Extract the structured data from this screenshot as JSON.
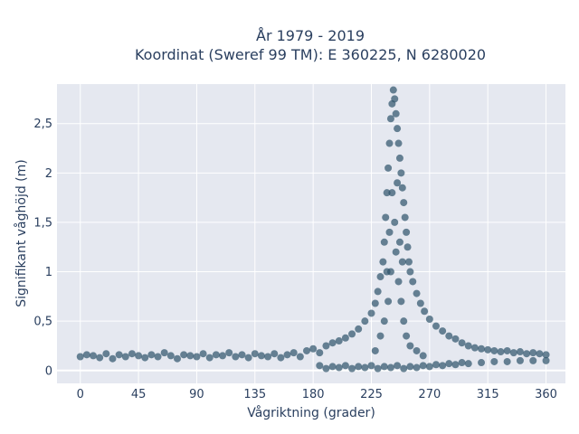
{
  "chart_data": {
    "type": "scatter",
    "title_lines": [
      "År 1979 - 2019",
      "Koordinat (Sweref 99 TM): E 360225, N 6280020"
    ],
    "xlabel": "Vågriktning (grader)",
    "ylabel": "Signifikant våghöjd (m)",
    "xlim": [
      -18,
      375
    ],
    "ylim": [
      -0.13,
      2.9
    ],
    "x_ticks": [
      0,
      45,
      90,
      135,
      180,
      225,
      270,
      315,
      360
    ],
    "x_tick_labels": [
      "0",
      "45",
      "90",
      "135",
      "180",
      "225",
      "270",
      "315",
      "360"
    ],
    "y_ticks": [
      0,
      0.5,
      1,
      1.5,
      2,
      2.5
    ],
    "y_tick_labels": [
      "0",
      "0,5",
      "1",
      "1,5",
      "2",
      "2,5"
    ],
    "grid": true,
    "marker_color": "#2e5369",
    "plot_bg": "#e5e8f0",
    "points": [
      [
        0,
        0.14
      ],
      [
        5,
        0.16
      ],
      [
        10,
        0.15
      ],
      [
        15,
        0.13
      ],
      [
        20,
        0.17
      ],
      [
        25,
        0.12
      ],
      [
        30,
        0.16
      ],
      [
        35,
        0.14
      ],
      [
        40,
        0.17
      ],
      [
        45,
        0.15
      ],
      [
        50,
        0.13
      ],
      [
        55,
        0.16
      ],
      [
        60,
        0.14
      ],
      [
        65,
        0.18
      ],
      [
        70,
        0.15
      ],
      [
        75,
        0.12
      ],
      [
        80,
        0.16
      ],
      [
        85,
        0.15
      ],
      [
        90,
        0.14
      ],
      [
        95,
        0.17
      ],
      [
        100,
        0.13
      ],
      [
        105,
        0.16
      ],
      [
        110,
        0.15
      ],
      [
        115,
        0.18
      ],
      [
        120,
        0.14
      ],
      [
        125,
        0.16
      ],
      [
        130,
        0.13
      ],
      [
        135,
        0.17
      ],
      [
        140,
        0.15
      ],
      [
        145,
        0.14
      ],
      [
        150,
        0.17
      ],
      [
        155,
        0.13
      ],
      [
        160,
        0.16
      ],
      [
        165,
        0.18
      ],
      [
        170,
        0.14
      ],
      [
        175,
        0.2
      ],
      [
        180,
        0.22
      ],
      [
        185,
        0.18
      ],
      [
        190,
        0.25
      ],
      [
        195,
        0.28
      ],
      [
        200,
        0.3
      ],
      [
        205,
        0.33
      ],
      [
        210,
        0.37
      ],
      [
        215,
        0.42
      ],
      [
        220,
        0.5
      ],
      [
        225,
        0.58
      ],
      [
        228,
        0.68
      ],
      [
        230,
        0.8
      ],
      [
        232,
        0.95
      ],
      [
        234,
        1.1
      ],
      [
        235,
        1.3
      ],
      [
        236,
        1.55
      ],
      [
        237,
        1.8
      ],
      [
        238,
        2.05
      ],
      [
        239,
        2.3
      ],
      [
        240,
        2.55
      ],
      [
        241,
        2.7
      ],
      [
        242,
        2.84
      ],
      [
        243,
        2.75
      ],
      [
        244,
        2.6
      ],
      [
        245,
        2.45
      ],
      [
        246,
        2.3
      ],
      [
        247,
        2.15
      ],
      [
        248,
        2.0
      ],
      [
        249,
        1.85
      ],
      [
        250,
        1.7
      ],
      [
        251,
        1.55
      ],
      [
        252,
        1.4
      ],
      [
        253,
        1.25
      ],
      [
        254,
        1.1
      ],
      [
        255,
        1.0
      ],
      [
        257,
        0.9
      ],
      [
        260,
        0.78
      ],
      [
        263,
        0.68
      ],
      [
        266,
        0.6
      ],
      [
        270,
        0.52
      ],
      [
        275,
        0.45
      ],
      [
        280,
        0.4
      ],
      [
        285,
        0.35
      ],
      [
        290,
        0.32
      ],
      [
        295,
        0.28
      ],
      [
        300,
        0.25
      ],
      [
        305,
        0.23
      ],
      [
        310,
        0.22
      ],
      [
        315,
        0.21
      ],
      [
        320,
        0.2
      ],
      [
        325,
        0.19
      ],
      [
        330,
        0.2
      ],
      [
        335,
        0.18
      ],
      [
        340,
        0.19
      ],
      [
        345,
        0.17
      ],
      [
        350,
        0.18
      ],
      [
        355,
        0.17
      ],
      [
        360,
        0.16
      ],
      [
        185,
        0.05
      ],
      [
        190,
        0.02
      ],
      [
        195,
        0.04
      ],
      [
        200,
        0.03
      ],
      [
        205,
        0.05
      ],
      [
        210,
        0.02
      ],
      [
        215,
        0.04
      ],
      [
        220,
        0.03
      ],
      [
        225,
        0.05
      ],
      [
        230,
        0.02
      ],
      [
        235,
        0.04
      ],
      [
        240,
        0.03
      ],
      [
        245,
        0.05
      ],
      [
        250,
        0.02
      ],
      [
        255,
        0.04
      ],
      [
        260,
        0.03
      ],
      [
        265,
        0.05
      ],
      [
        270,
        0.04
      ],
      [
        275,
        0.06
      ],
      [
        280,
        0.05
      ],
      [
        285,
        0.07
      ],
      [
        290,
        0.06
      ],
      [
        295,
        0.08
      ],
      [
        300,
        0.07
      ],
      [
        310,
        0.08
      ],
      [
        320,
        0.09
      ],
      [
        330,
        0.09
      ],
      [
        340,
        0.1
      ],
      [
        350,
        0.1
      ],
      [
        360,
        0.1
      ],
      [
        228,
        0.2
      ],
      [
        232,
        0.35
      ],
      [
        235,
        0.5
      ],
      [
        238,
        0.7
      ],
      [
        240,
        1.0
      ],
      [
        244,
        1.2
      ],
      [
        246,
        0.9
      ],
      [
        248,
        0.7
      ],
      [
        250,
        0.5
      ],
      [
        252,
        0.35
      ],
      [
        255,
        0.25
      ],
      [
        260,
        0.2
      ],
      [
        265,
        0.15
      ],
      [
        243,
        1.5
      ],
      [
        241,
        1.8
      ],
      [
        245,
        1.9
      ],
      [
        239,
        1.4
      ],
      [
        247,
        1.3
      ],
      [
        249,
        1.1
      ],
      [
        237,
        1.0
      ]
    ]
  }
}
